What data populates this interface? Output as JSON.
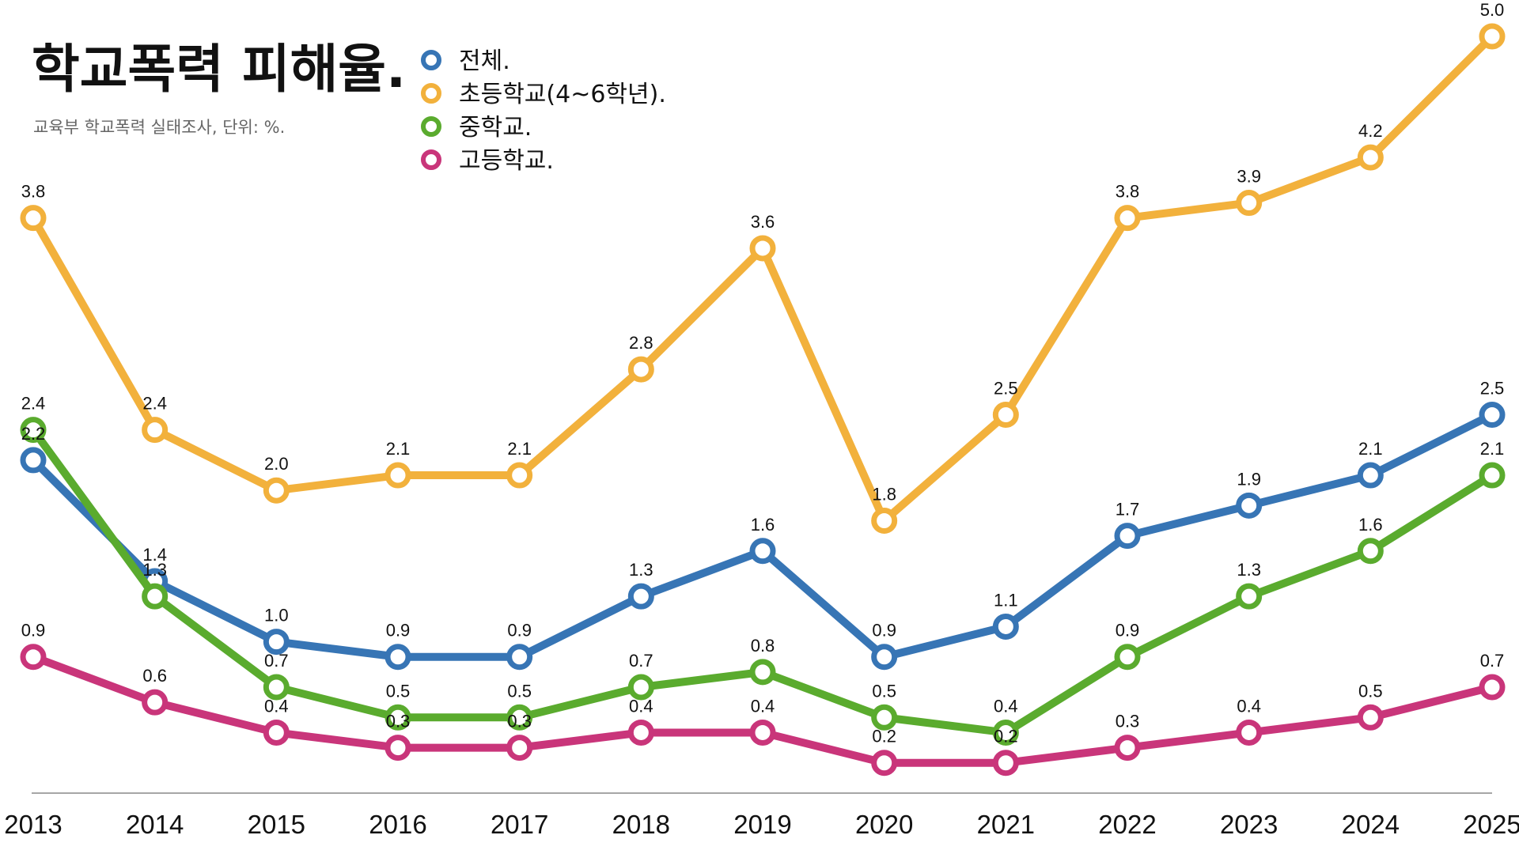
{
  "chart_data": {
    "type": "line",
    "title": "학교폭력 피해율.",
    "subtitle": "교육부 학교폭력 실태조사, 단위: %.",
    "xlabel": "",
    "ylabel": "",
    "categories": [
      "2013",
      "2014",
      "2015",
      "2016",
      "2017",
      "2018",
      "2019",
      "2020",
      "2021",
      "2022",
      "2023",
      "2024",
      "2025"
    ],
    "ylim": [
      0,
      5.0
    ],
    "grid": false,
    "legend_position": "top-left",
    "series": [
      {
        "name": "전체.",
        "color": "#3775b5",
        "values": [
          2.2,
          1.4,
          1.0,
          0.9,
          0.9,
          1.3,
          1.6,
          0.9,
          1.1,
          1.7,
          1.9,
          2.1,
          2.5
        ]
      },
      {
        "name": "초등학교(4~6학년).",
        "color": "#f2b13c",
        "values": [
          3.8,
          2.4,
          2.0,
          2.1,
          2.1,
          2.8,
          3.6,
          1.8,
          2.5,
          3.8,
          3.9,
          4.2,
          5.0
        ]
      },
      {
        "name": "중학교.",
        "color": "#5aab2e",
        "values": [
          2.4,
          1.3,
          0.7,
          0.5,
          0.5,
          0.7,
          0.8,
          0.5,
          0.4,
          0.9,
          1.3,
          1.6,
          2.1
        ]
      },
      {
        "name": "고등학교.",
        "color": "#c9357a",
        "values": [
          0.9,
          0.6,
          0.4,
          0.3,
          0.3,
          0.4,
          0.4,
          0.2,
          0.2,
          0.3,
          0.4,
          0.5,
          0.7
        ]
      }
    ]
  }
}
